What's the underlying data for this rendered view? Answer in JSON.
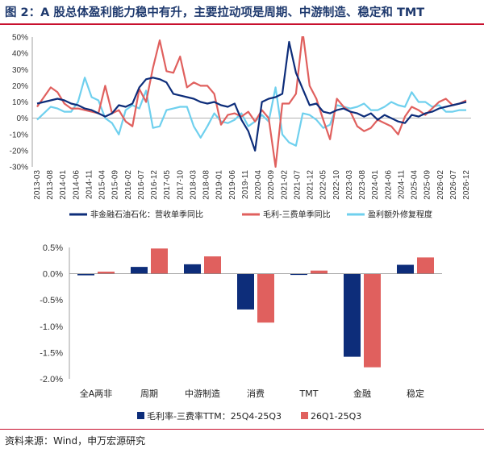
{
  "title": "图 2：A 股总体盈利能力稳中有升，主要拉动项是周期、中游制造、稳定和 TMT",
  "source": "资料来源：Wind，申万宏源研究",
  "colors": {
    "navy": "#0d2d7a",
    "red": "#e0605e",
    "cyan": "#6fd0ee",
    "title": "#1f3a6e",
    "rule": "#c8102e"
  },
  "chart_data": [
    {
      "type": "line",
      "yunit": "%",
      "ylim": [
        -30,
        50
      ],
      "yticks": [
        "50%",
        "40%",
        "30%",
        "20%",
        "10%",
        "0%",
        "-10%",
        "-20%",
        "-30%"
      ],
      "ytick_values": [
        50,
        40,
        30,
        20,
        10,
        0,
        -10,
        -20,
        -30
      ],
      "x_ticks": [
        "2013-03",
        "2013-08",
        "2014-01",
        "2014-06",
        "2014-11",
        "2015-04",
        "2015-09",
        "2016-02",
        "2016-07",
        "2016-12",
        "2017-05",
        "2017-10",
        "2018-03",
        "2018-08",
        "2019-01",
        "2019-06",
        "2019-11",
        "2020-04",
        "2020-09",
        "2021-02",
        "2021-07",
        "2021-12",
        "2022-05",
        "2022-10",
        "2023-03",
        "2023-08",
        "2024-01",
        "2024-06",
        "2024-11",
        "2025-04",
        "2025-09",
        "2026-02",
        "2026-07",
        "2026-12"
      ],
      "legend_position": "bottom",
      "grid": false,
      "series": [
        {
          "name": "非金融石油石化：营收单季同比",
          "color": "#0d2d7a",
          "values": [
            9,
            10,
            11,
            12,
            11,
            9,
            8,
            6,
            5,
            3,
            1,
            3,
            8,
            7,
            9,
            19,
            24,
            25,
            24,
            22,
            15,
            14,
            13,
            12,
            10,
            9,
            10,
            8,
            7,
            9,
            -1,
            -8,
            -20,
            10,
            12,
            13,
            15,
            47,
            28,
            18,
            8,
            9,
            4,
            3,
            5,
            6,
            4,
            3,
            1,
            3,
            -1,
            2,
            0,
            -2,
            -3,
            2,
            1,
            3,
            4,
            6,
            7,
            8,
            9,
            10
          ]
        },
        {
          "name": "毛利-三费单季同比",
          "color": "#e0605e",
          "values": [
            7,
            13,
            19,
            16,
            9,
            6,
            6,
            5,
            4,
            3,
            20,
            3,
            5,
            -2,
            -5,
            18,
            10,
            31,
            48,
            29,
            28,
            38,
            19,
            22,
            20,
            20,
            15,
            -4,
            2,
            3,
            1,
            4,
            -2,
            5,
            0,
            -30,
            9,
            9,
            15,
            53,
            20,
            12,
            -1,
            -13,
            12,
            7,
            4,
            -5,
            -8,
            -6,
            -1,
            -3,
            -5,
            -10,
            1,
            7,
            5,
            2,
            6,
            10,
            12,
            8,
            9,
            11
          ]
        },
        {
          "name": "盈利额外修复程度",
          "color": "#6fd0ee",
          "values": [
            -1,
            3,
            7,
            6,
            4,
            4,
            10,
            25,
            13,
            11,
            0,
            -3,
            -10,
            5,
            8,
            6,
            17,
            -6,
            -5,
            5,
            6,
            7,
            7,
            -5,
            -12,
            -5,
            3,
            -2,
            -3,
            -1,
            3,
            -5,
            -2,
            2,
            -2,
            19,
            -10,
            -15,
            -17,
            3,
            2,
            -1,
            -6,
            -4,
            8,
            7,
            6,
            7,
            9,
            5,
            5,
            7,
            10,
            8,
            7,
            16,
            10,
            10,
            7,
            8,
            4,
            4,
            5,
            5
          ]
        }
      ]
    },
    {
      "type": "bar",
      "yunit": "%",
      "ylim": [
        -2.0,
        0.5
      ],
      "yticks": [
        "0.5%",
        "0.0%",
        "-0.5%",
        "-1.0%",
        "-1.5%",
        "-2.0%"
      ],
      "ytick_values": [
        0.5,
        0.0,
        -0.5,
        -1.0,
        -1.5,
        -2.0
      ],
      "categories": [
        "全A两非",
        "周期",
        "中游制造",
        "消费",
        "TMT",
        "金融",
        "稳定"
      ],
      "legend_position": "bottom",
      "grid": false,
      "series": [
        {
          "name": "毛利率-三费率TTM：25Q4-25Q3",
          "color": "#0d2d7a",
          "values": [
            -0.03,
            0.13,
            0.18,
            -0.68,
            -0.02,
            -1.58,
            0.17
          ]
        },
        {
          "name": "26Q1-25Q3",
          "color": "#e0605e",
          "values": [
            0.04,
            0.48,
            0.33,
            -0.93,
            0.06,
            -1.78,
            0.31
          ]
        }
      ]
    }
  ]
}
